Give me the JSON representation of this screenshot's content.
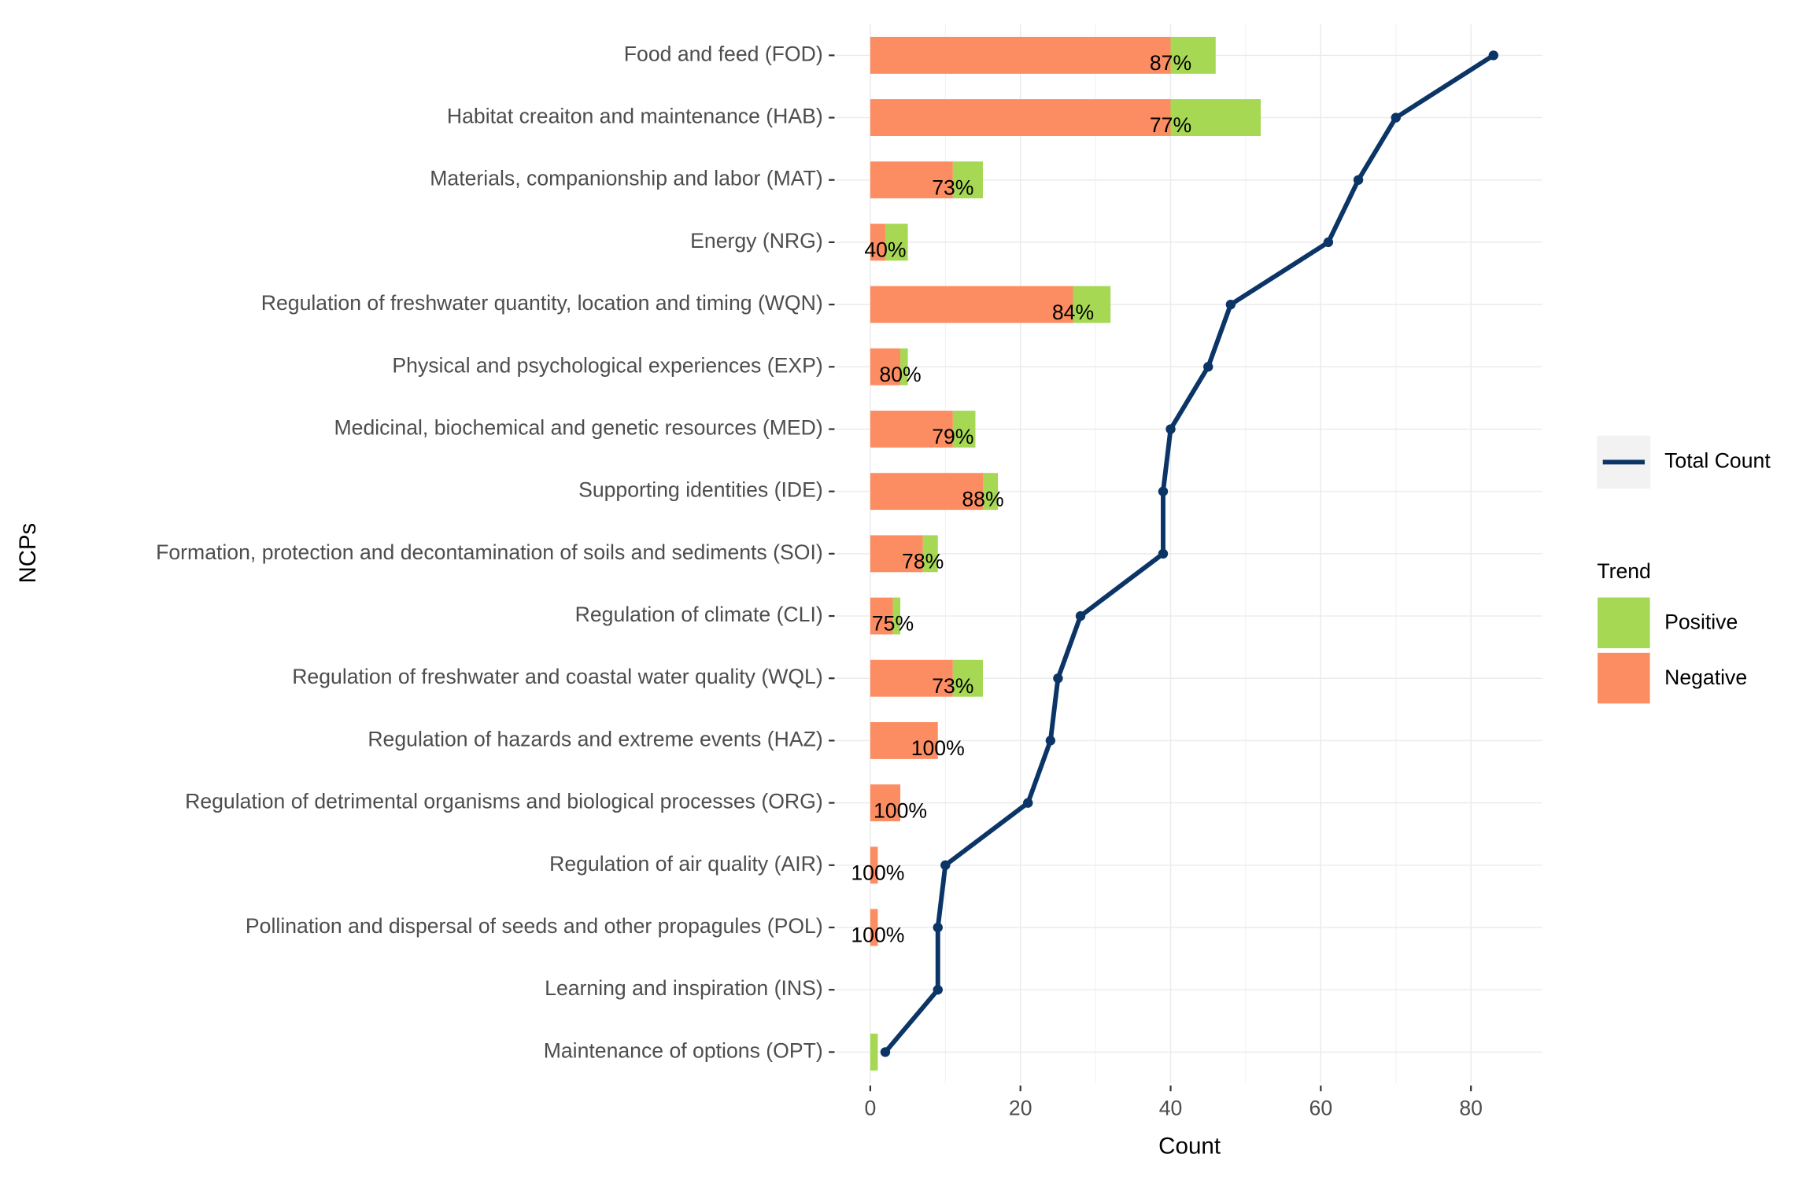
{
  "chart_data": {
    "type": "bar",
    "orientation": "horizontal",
    "stacked": true,
    "x_label": "Count",
    "y_label": "NCPs",
    "categories": [
      "Food and feed (FOD)",
      "Habitat creaiton and maintenance (HAB)",
      "Materials, companionship and labor (MAT)",
      "Energy (NRG)",
      "Regulation of freshwater quantity, location and timing (WQN)",
      "Physical and psychological experiences (EXP)",
      "Medicinal, biochemical and genetic resources (MED)",
      "Supporting identities (IDE)",
      "Formation, protection and decontamination of soils and sediments (SOI)",
      "Regulation of climate (CLI)",
      "Regulation of freshwater and coastal water quality (WQL)",
      "Regulation of hazards and extreme events (HAZ)",
      "Regulation of detrimental organisms and biological processes (ORG)",
      "Regulation of air quality (AIR)",
      "Pollination and dispersal of seeds and other propagules (POL)",
      "Learning and inspiration (INS)",
      "Maintenance of options (OPT)"
    ],
    "legend_title": "Trend",
    "series": [
      {
        "name": "Negative",
        "color": "#fc8d62",
        "values": [
          40,
          40,
          11,
          2,
          27,
          4,
          11,
          15,
          7,
          3,
          11,
          9,
          4,
          1,
          1,
          0,
          0
        ]
      },
      {
        "name": "Positive",
        "color": "#a6d854",
        "values": [
          6,
          12,
          4,
          3,
          5,
          1,
          3,
          2,
          2,
          1,
          4,
          0,
          0,
          0,
          0,
          0,
          1
        ]
      },
      {
        "name": "Total Count",
        "type": "line",
        "color": "#0b3566",
        "values": [
          83,
          70,
          65,
          61,
          48,
          45,
          40,
          39,
          39,
          28,
          25,
          24,
          21,
          10,
          9,
          9,
          2
        ]
      }
    ],
    "share_labels": {
      "values": [
        87,
        77,
        73,
        40,
        84,
        80,
        79,
        88,
        78,
        75,
        73,
        100,
        100,
        100,
        100,
        null,
        null
      ],
      "value_labels": [
        "87%",
        "77%",
        "73%",
        "40%",
        "84%",
        "80%",
        "79%",
        "88%",
        "78%",
        "75%",
        "73%",
        "100%",
        "100%",
        "100%",
        "100%",
        null,
        null
      ]
    },
    "xlim": [
      -4.6,
      89.5
    ],
    "xticks": [
      0,
      20,
      40,
      60,
      80
    ],
    "minor_xticks": [
      10,
      30,
      50,
      70
    ],
    "grid": true
  }
}
